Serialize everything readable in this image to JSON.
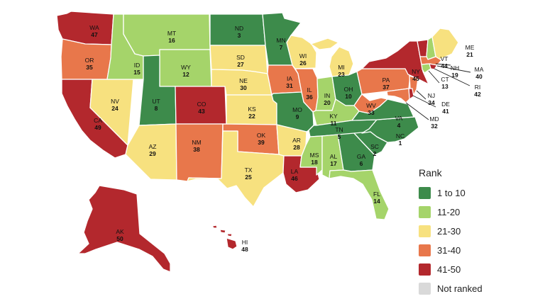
{
  "legend": {
    "title": "Rank",
    "items": [
      {
        "label": "1 to 10",
        "color": "#3d8b4b"
      },
      {
        "label": "11-20",
        "color": "#a5d46a"
      },
      {
        "label": "21-30",
        "color": "#f7e17f"
      },
      {
        "label": "31-40",
        "color": "#e8774b"
      },
      {
        "label": "41-50",
        "color": "#b3282d"
      },
      {
        "label": "Not ranked",
        "color": "#d9d9d9"
      }
    ]
  },
  "states": [
    {
      "abbr": "WA",
      "rank": 47
    },
    {
      "abbr": "OR",
      "rank": 35
    },
    {
      "abbr": "CA",
      "rank": 49
    },
    {
      "abbr": "NV",
      "rank": 24
    },
    {
      "abbr": "ID",
      "rank": 15
    },
    {
      "abbr": "MT",
      "rank": 16
    },
    {
      "abbr": "WY",
      "rank": 12
    },
    {
      "abbr": "UT",
      "rank": 8
    },
    {
      "abbr": "AZ",
      "rank": 29
    },
    {
      "abbr": "CO",
      "rank": 43
    },
    {
      "abbr": "NM",
      "rank": 38
    },
    {
      "abbr": "ND",
      "rank": 3
    },
    {
      "abbr": "SD",
      "rank": 27
    },
    {
      "abbr": "NE",
      "rank": 30
    },
    {
      "abbr": "KS",
      "rank": 22
    },
    {
      "abbr": "OK",
      "rank": 39
    },
    {
      "abbr": "TX",
      "rank": 25
    },
    {
      "abbr": "MN",
      "rank": 7
    },
    {
      "abbr": "IA",
      "rank": 31
    },
    {
      "abbr": "MO",
      "rank": 9
    },
    {
      "abbr": "AR",
      "rank": 28
    },
    {
      "abbr": "LA",
      "rank": 46
    },
    {
      "abbr": "WI",
      "rank": 26
    },
    {
      "abbr": "IL",
      "rank": 36
    },
    {
      "abbr": "MI",
      "rank": 23
    },
    {
      "abbr": "IN",
      "rank": 20
    },
    {
      "abbr": "OH",
      "rank": 10
    },
    {
      "abbr": "KY",
      "rank": 11
    },
    {
      "abbr": "TN",
      "rank": 5
    },
    {
      "abbr": "MS",
      "rank": 18
    },
    {
      "abbr": "AL",
      "rank": 17
    },
    {
      "abbr": "GA",
      "rank": 6
    },
    {
      "abbr": "FL",
      "rank": 14
    },
    {
      "abbr": "SC",
      "rank": 2
    },
    {
      "abbr": "NC",
      "rank": 1
    },
    {
      "abbr": "VA",
      "rank": 4
    },
    {
      "abbr": "WV",
      "rank": 33
    },
    {
      "abbr": "PA",
      "rank": 37
    },
    {
      "abbr": "NY",
      "rank": 45
    },
    {
      "abbr": "VT",
      "rank": 44
    },
    {
      "abbr": "NH",
      "rank": 19
    },
    {
      "abbr": "ME",
      "rank": 21
    },
    {
      "abbr": "MA",
      "rank": 40
    },
    {
      "abbr": "RI",
      "rank": 42
    },
    {
      "abbr": "CT",
      "rank": 13
    },
    {
      "abbr": "NJ",
      "rank": 34
    },
    {
      "abbr": "DE",
      "rank": 41
    },
    {
      "abbr": "MD",
      "rank": 32
    },
    {
      "abbr": "AK",
      "rank": 50
    },
    {
      "abbr": "HI",
      "rank": 48
    }
  ]
}
